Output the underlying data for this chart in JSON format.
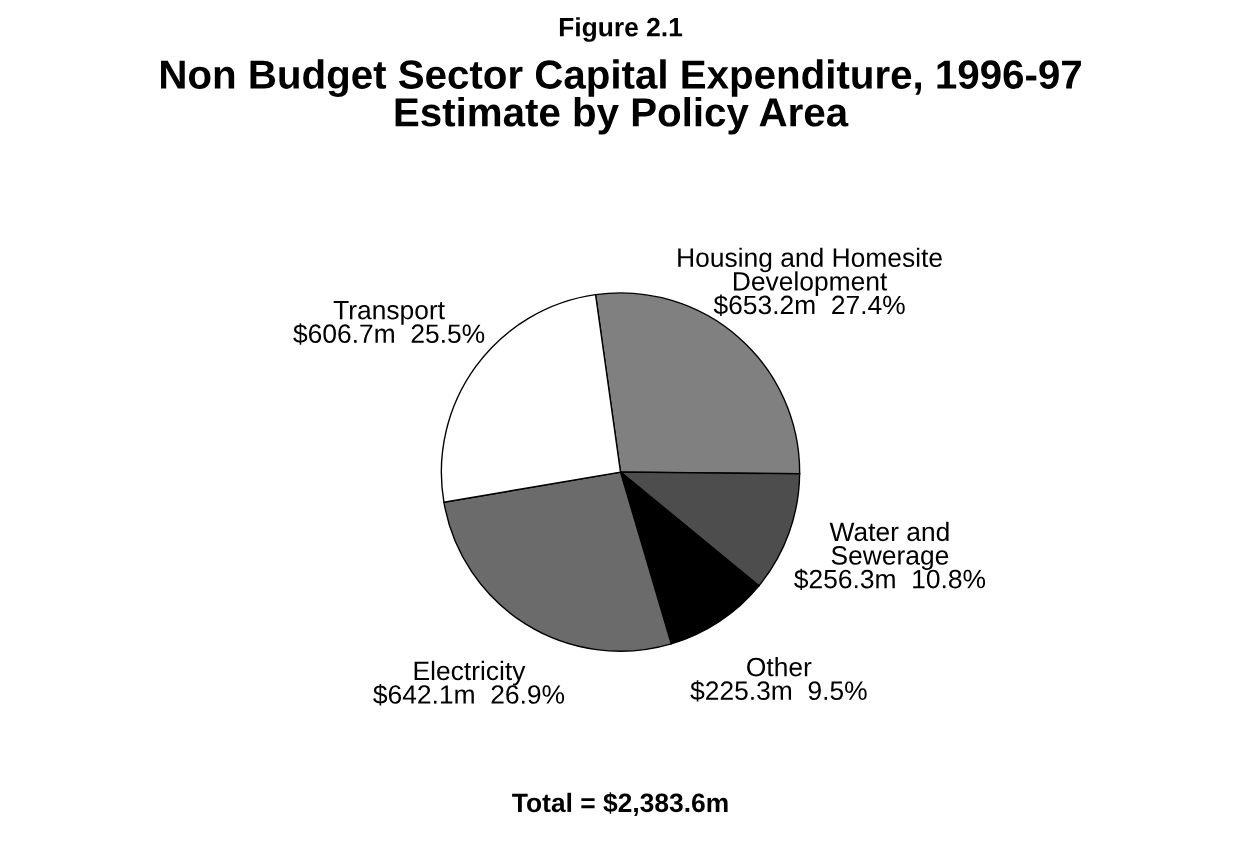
{
  "chart_data": {
    "type": "pie",
    "title": "Figure 2.1",
    "subtitle": "Non Budget Sector Capital Expenditure, 1996-97\nEstimate by Policy Area",
    "categories": [
      "Housing and Homesite\nDevelopment",
      "Water and\nSewerage",
      "Other",
      "Electricity",
      "Transport"
    ],
    "values": [
      27.4,
      10.8,
      9.5,
      26.9,
      25.5
    ],
    "value_labels": [
      "$653.2m  27.4%",
      "$256.3m  10.8%",
      "$225.3m  9.5%",
      "$642.1m  26.9%",
      "$606.7m  25.5%"
    ],
    "colors": [
      "#808080",
      "#4d4d4d",
      "#000000",
      "#6b6b6b",
      "#ffffff"
    ],
    "annotations": [
      "Total = $2,383.6m"
    ]
  }
}
